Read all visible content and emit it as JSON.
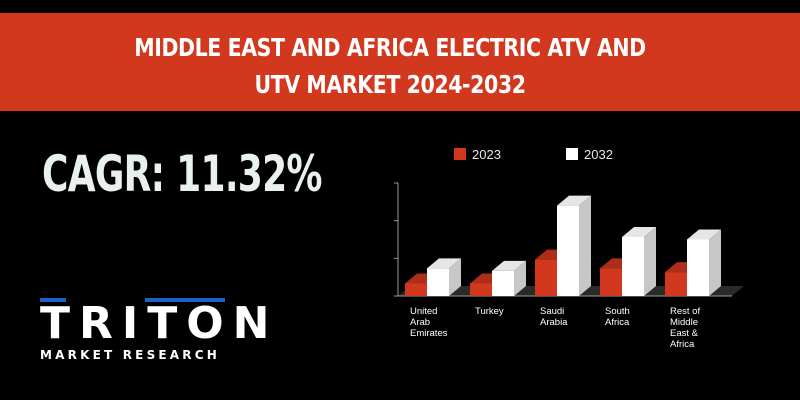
{
  "banner": {
    "title_line1": "MIDDLE EAST AND AFRICA  ELECTRIC ATV AND",
    "title_line2": "UTV MARKET 2024-2032"
  },
  "cagr": {
    "label": "CAGR: 11.32%"
  },
  "logo": {
    "name": "TRITON",
    "tagline": "MARKET RESEARCH"
  },
  "colors": {
    "banner": "#d2381e",
    "series_2023": "#d2381e",
    "series_2032": "#ffffff",
    "background": "#000000",
    "logo_accent": "#1f5fc9"
  },
  "chart_data": {
    "type": "bar",
    "title": "",
    "categories": [
      [
        "United",
        "Arab",
        "Emirates"
      ],
      [
        "Turkey"
      ],
      [
        "Saudi",
        "Arabia"
      ],
      [
        "South",
        "Africa"
      ],
      [
        "Rest of",
        "Middle",
        "East &",
        "Africa"
      ]
    ],
    "series": [
      {
        "name": "2023",
        "values": [
          1.0,
          1.0,
          2.9,
          2.2,
          1.9
        ]
      },
      {
        "name": "2032",
        "values": [
          2.2,
          2.0,
          7.2,
          4.7,
          4.5
        ]
      }
    ],
    "ylim": [
      0,
      9
    ],
    "xlabel": "",
    "ylabel": "",
    "legend_position": "top"
  }
}
